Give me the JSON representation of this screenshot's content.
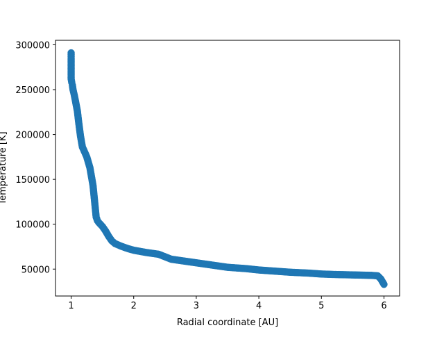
{
  "chart_data": {
    "type": "scatter",
    "xlabel": "Radial coordinate [AU]",
    "ylabel": "Temperature [K]",
    "xlim": [
      0.75,
      6.25
    ],
    "ylim": [
      20000,
      305000
    ],
    "xticks": [
      1,
      2,
      3,
      4,
      5,
      6
    ],
    "xtick_labels": [
      "1",
      "2",
      "3",
      "4",
      "5",
      "6"
    ],
    "yticks": [
      50000,
      100000,
      150000,
      200000,
      250000,
      300000
    ],
    "ytick_labels": [
      "50000",
      "100000",
      "150000",
      "200000",
      "250000",
      "300000"
    ],
    "grid": false,
    "legend": "none",
    "series": [
      {
        "color": "#1f77b4",
        "marker": "circle",
        "x": [
          1.0,
          1.0,
          1.0,
          1.01,
          1.02,
          1.03,
          1.05,
          1.07,
          1.1,
          1.12,
          1.15,
          1.18,
          1.2,
          1.25,
          1.3,
          1.35,
          1.4,
          1.42,
          1.44,
          1.46,
          1.5,
          1.55,
          1.6,
          1.65,
          1.7,
          1.8,
          1.9,
          2.0,
          2.2,
          2.4,
          2.6,
          2.8,
          3.0,
          3.2,
          3.5,
          3.8,
          4.0,
          4.2,
          4.5,
          4.8,
          5.0,
          5.2,
          5.5,
          5.8,
          5.9,
          5.95,
          6.0
        ],
        "y": [
          291000,
          285000,
          262000,
          258000,
          255000,
          250000,
          244000,
          237000,
          226000,
          214000,
          198000,
          186000,
          183000,
          175000,
          163000,
          143000,
          108000,
          104000,
          102000,
          100500,
          97500,
          92500,
          86500,
          81500,
          78500,
          75500,
          73000,
          71000,
          68500,
          66500,
          61000,
          59000,
          57000,
          55000,
          52000,
          50500,
          49000,
          48000,
          46500,
          45500,
          44500,
          44000,
          43500,
          43000,
          42500,
          39000,
          33000
        ]
      }
    ]
  }
}
